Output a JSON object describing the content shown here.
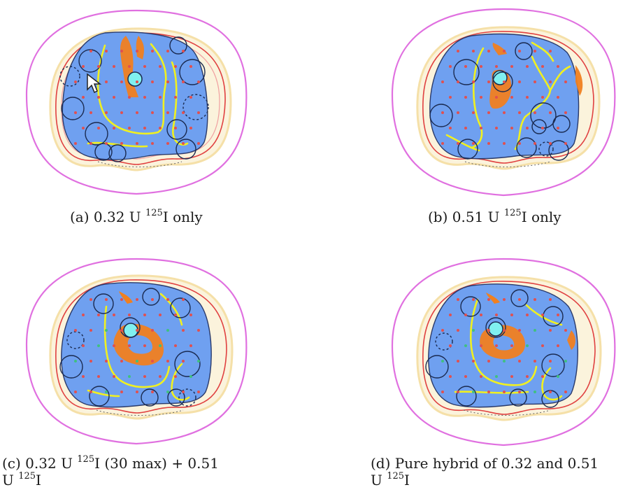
{
  "figure": {
    "panels": [
      {
        "id": "a",
        "label": "(a)",
        "dose": "0.32",
        "unit": "U",
        "isotope_mass": "125",
        "isotope_symbol": "I",
        "suffix": "only",
        "line2_mass": "",
        "line2_symbol": ""
      },
      {
        "id": "b",
        "label": "(b)",
        "dose": "0.51",
        "unit": "U",
        "isotope_mass": "125",
        "isotope_symbol": "I",
        "suffix": "only",
        "line2_mass": "",
        "line2_symbol": ""
      },
      {
        "id": "c",
        "label": "(c)",
        "dose": "0.32",
        "unit": "U",
        "isotope_mass": "125",
        "isotope_symbol": "I",
        "suffix": "(30 max) + 0.51",
        "line2_prefix": "U",
        "line2_mass": "125",
        "line2_symbol": "I"
      },
      {
        "id": "d",
        "label": "(d)",
        "dose": "",
        "unit": "",
        "isotope_mass": "",
        "isotope_symbol": "",
        "suffix": "Pure hybrid of 0.32 and 0.51",
        "line2_prefix": "U",
        "line2_mass": "125",
        "line2_symbol": "I"
      }
    ],
    "colors": {
      "outer_body": "#e070e0",
      "isodose_red": "#e04040",
      "isodose_pink": "#f0a0a0",
      "isodose_cream": "#f5e6b8",
      "prostate_fill": "#6fa0f0",
      "prostate_edge": "#2a3a6a",
      "high_dose_orange": "#f08020",
      "contour_yellow": "#f0f020",
      "urethra_cyan": "#80f0f0",
      "seed_red": "#e05050",
      "seed_green": "#40c080",
      "seed_ring": "#1a2a50"
    }
  }
}
